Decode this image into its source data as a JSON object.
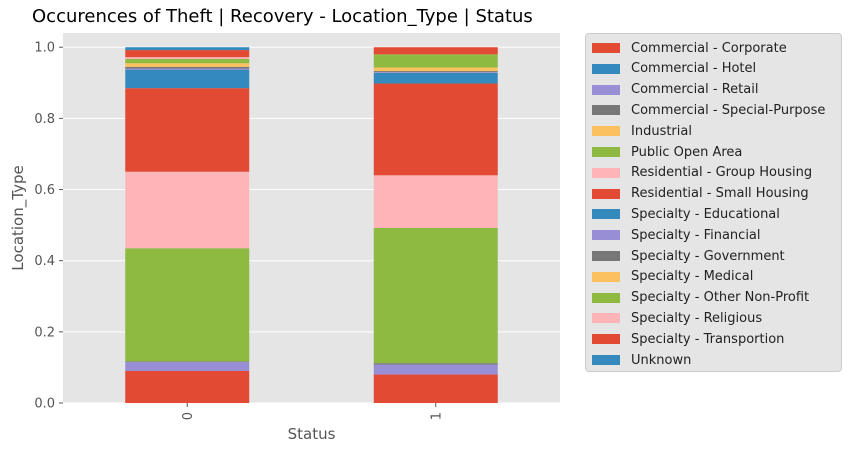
{
  "chart_data": {
    "type": "bar",
    "stacked": true,
    "title": "Occurences of Theft | Recovery - Location_Type | Status",
    "xlabel": "Status",
    "ylabel": "Location_Type",
    "ylim": [
      0,
      1.04
    ],
    "yticks": [
      "0.0",
      "0.2",
      "0.4",
      "0.6",
      "0.8",
      "1.0"
    ],
    "categories": [
      "0",
      "1"
    ],
    "grid": true,
    "legend_position": "right",
    "series": [
      {
        "name": "Commercial - Corporate",
        "color": "#E24A33",
        "values": [
          0.09,
          0.08
        ]
      },
      {
        "name": "Commercial - Hotel",
        "color": "#348ABD",
        "values": [
          0.0,
          0.0
        ]
      },
      {
        "name": "Commercial - Retail",
        "color": "#988ED5",
        "values": [
          0.025,
          0.028
        ]
      },
      {
        "name": "Commercial - Special-Purpose",
        "color": "#777777",
        "values": [
          0.002,
          0.004
        ]
      },
      {
        "name": "Industrial",
        "color": "#FBC15E",
        "values": [
          0.0,
          0.0
        ]
      },
      {
        "name": "Public Open Area",
        "color": "#8EBA42",
        "values": [
          0.318,
          0.38
        ]
      },
      {
        "name": "Residential - Group Housing",
        "color": "#FFB5B8",
        "values": [
          0.215,
          0.148
        ]
      },
      {
        "name": "Residential - Small Housing",
        "color": "#E24A33",
        "values": [
          0.235,
          0.258
        ]
      },
      {
        "name": "Specialty - Educational",
        "color": "#348ABD",
        "values": [
          0.052,
          0.03
        ]
      },
      {
        "name": "Specialty - Financial",
        "color": "#988ED5",
        "values": [
          0.003,
          0.002
        ]
      },
      {
        "name": "Specialty - Government",
        "color": "#777777",
        "values": [
          0.005,
          0.003
        ]
      },
      {
        "name": "Specialty - Medical",
        "color": "#FBC15E",
        "values": [
          0.01,
          0.01
        ]
      },
      {
        "name": "Specialty - Other Non-Profit",
        "color": "#8EBA42",
        "values": [
          0.012,
          0.037
        ]
      },
      {
        "name": "Specialty - Religious",
        "color": "#FFB5B8",
        "values": [
          0.005,
          0.0
        ]
      },
      {
        "name": "Specialty - Transportion",
        "color": "#E24A33",
        "values": [
          0.02,
          0.02
        ]
      },
      {
        "name": "Unknown",
        "color": "#348ABD",
        "values": [
          0.008,
          0.0
        ]
      }
    ]
  }
}
